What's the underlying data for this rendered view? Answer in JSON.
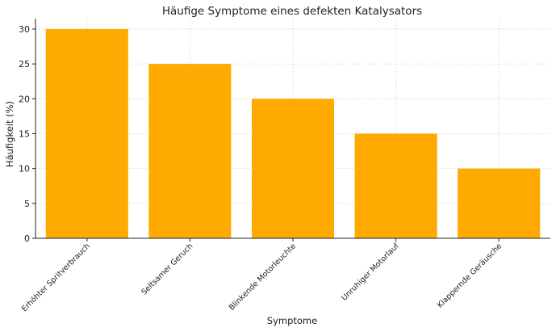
{
  "chart_data": {
    "type": "bar",
    "title": "Häufige Symptome eines defekten Katalysators",
    "xlabel": "Symptome",
    "ylabel": "Häufigkeit (%)",
    "categories": [
      "Erhöhter Spritverbrauch",
      "Seltsamer Geruch",
      "Blinkende Motorleuchte",
      "Unruhiger Motorlauf",
      "Klappernde Geräusche"
    ],
    "values": [
      30,
      25,
      20,
      15,
      10
    ],
    "ylim": [
      0,
      31.5
    ],
    "yticks": [
      0,
      5,
      10,
      15,
      20,
      25,
      30
    ],
    "bar_color": "#FFAA00",
    "grid": true
  }
}
